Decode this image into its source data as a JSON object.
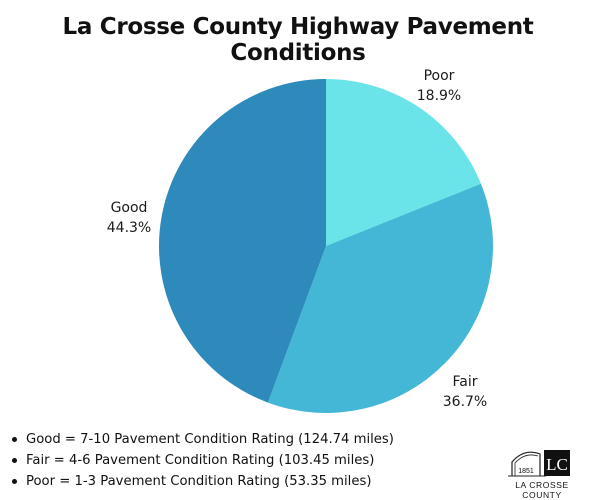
{
  "chart_data": {
    "type": "pie",
    "title": "La Crosse County Highway Pavement Conditions",
    "slices": [
      {
        "label": "Poor",
        "value": 18.9,
        "display": "18.9%",
        "color": "#6ae4e8"
      },
      {
        "label": "Fair",
        "value": 36.7,
        "display": "36.7%",
        "color": "#44b6d6"
      },
      {
        "label": "Good",
        "value": 44.3,
        "display": "44.3%",
        "color": "#2d8aba"
      }
    ]
  },
  "notes": [
    "Good = 7-10 Pavement Condition Rating (124.74 miles)",
    "Fair = 4-6 Pavement Condition Rating (103.45 miles)",
    "Poor = 1-3 Pavement Condition Rating (53.35 miles)"
  ],
  "logo": {
    "initials": "LC",
    "year": "1851",
    "name": "LA CROSSE COUNTY"
  }
}
